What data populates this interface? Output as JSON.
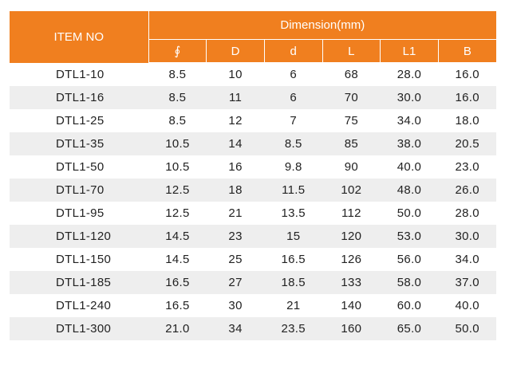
{
  "table": {
    "item_header": "ITEM NO",
    "group_header": "Dimension(mm)",
    "columns": [
      "∮",
      "D",
      "d",
      "L",
      "L1",
      "B"
    ],
    "rows": [
      [
        "DTL1-10",
        "8.5",
        "10",
        "6",
        "68",
        "28.0",
        "16.0"
      ],
      [
        "DTL1-16",
        "8.5",
        "11",
        "6",
        "70",
        "30.0",
        "16.0"
      ],
      [
        "DTL1-25",
        "8.5",
        "12",
        "7",
        "75",
        "34.0",
        "18.0"
      ],
      [
        "DTL1-35",
        "10.5",
        "14",
        "8.5",
        "85",
        "38.0",
        "20.5"
      ],
      [
        "DTL1-50",
        "10.5",
        "16",
        "9.8",
        "90",
        "40.0",
        "23.0"
      ],
      [
        "DTL1-70",
        "12.5",
        "18",
        "11.5",
        "102",
        "48.0",
        "26.0"
      ],
      [
        "DTL1-95",
        "12.5",
        "21",
        "13.5",
        "112",
        "50.0",
        "28.0"
      ],
      [
        "DTL1-120",
        "14.5",
        "23",
        "15",
        "120",
        "53.0",
        "30.0"
      ],
      [
        "DTL1-150",
        "14.5",
        "25",
        "16.5",
        "126",
        "56.0",
        "34.0"
      ],
      [
        "DTL1-185",
        "16.5",
        "27",
        "18.5",
        "133",
        "58.0",
        "37.0"
      ],
      [
        "DTL1-240",
        "16.5",
        "30",
        "21",
        "140",
        "60.0",
        "40.0"
      ],
      [
        "DTL1-300",
        "21.0",
        "34",
        "23.5",
        "160",
        "65.0",
        "50.0"
      ]
    ],
    "colors": {
      "header_bg": "#f07f1f",
      "header_text": "#ffffff",
      "stripe_bg": "#eeeeee"
    }
  }
}
